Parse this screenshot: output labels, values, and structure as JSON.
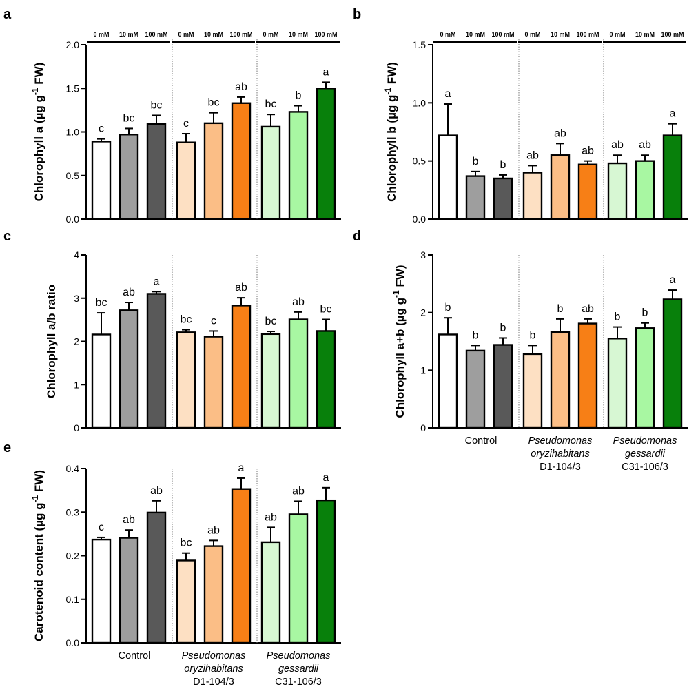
{
  "colors": {
    "control": [
      "#ffffff",
      "#9e9e9e",
      "#595959"
    ],
    "oryzihabitans": [
      "#fde0c3",
      "#fbbe86",
      "#f77f16"
    ],
    "gessardii": [
      "#d7f7d3",
      "#a8f7a2",
      "#08800b"
    ]
  },
  "concentrations": [
    "0 mM",
    "10 mM",
    "100 mM"
  ],
  "groups": [
    {
      "name": "Control",
      "italic": false,
      "lines": [
        "Control"
      ]
    },
    {
      "name": "Pseudomonas oryzihabitans D1-104/3",
      "italic": true,
      "lines": [
        "Pseudomonas",
        "oryzihabitans",
        "D1-104/3"
      ]
    },
    {
      "name": "Pseudomonas gessardii C31-106/3",
      "italic": true,
      "lines": [
        "Pseudomonas",
        "gessardii",
        "C31-106/3"
      ]
    }
  ],
  "chart_data": [
    {
      "panel": "a",
      "type": "bar",
      "ylabel_main": "Chlorophyll a (µg g",
      "ylabel_sup": "-1",
      "ylabel_end": " FW)",
      "ylim": [
        0,
        2.0
      ],
      "ticks": [
        "0.0",
        "0.5",
        "1.0",
        "1.5",
        "2.0"
      ],
      "tick_values": [
        0,
        0.5,
        1.0,
        1.5,
        2.0
      ],
      "values": [
        0.89,
        0.97,
        1.09,
        0.88,
        1.1,
        1.33,
        1.06,
        1.23,
        1.5
      ],
      "errors": [
        0.03,
        0.07,
        0.1,
        0.1,
        0.12,
        0.07,
        0.14,
        0.07,
        0.07
      ],
      "letters": [
        "c",
        "bc",
        "bc",
        "c",
        "bc",
        "ab",
        "bc",
        "b",
        "a"
      ],
      "show_concentrations": true,
      "show_groups": false
    },
    {
      "panel": "b",
      "type": "bar",
      "ylabel_main": "Chlorophyll b (µg g",
      "ylabel_sup": "-1",
      "ylabel_end": " FW)",
      "ylim": [
        0,
        1.5
      ],
      "ticks": [
        "0.0",
        "0.5",
        "1.0",
        "1.5"
      ],
      "tick_values": [
        0,
        0.5,
        1.0,
        1.5
      ],
      "values": [
        0.72,
        0.37,
        0.35,
        0.4,
        0.55,
        0.47,
        0.48,
        0.5,
        0.72
      ],
      "errors": [
        0.27,
        0.04,
        0.03,
        0.06,
        0.1,
        0.03,
        0.07,
        0.05,
        0.1
      ],
      "letters": [
        "a",
        "b",
        "b",
        "ab",
        "ab",
        "ab",
        "ab",
        "ab",
        "a"
      ],
      "show_concentrations": true,
      "show_groups": false
    },
    {
      "panel": "c",
      "type": "bar",
      "ylabel_main": "Chlorophyll a/b ratio",
      "ylabel_sup": "",
      "ylabel_end": "",
      "ylim": [
        0,
        4
      ],
      "ticks": [
        "0",
        "1",
        "2",
        "3",
        "4"
      ],
      "tick_values": [
        0,
        1,
        2,
        3,
        4
      ],
      "values": [
        2.16,
        2.72,
        3.1,
        2.21,
        2.11,
        2.83,
        2.17,
        2.51,
        2.24
      ],
      "errors": [
        0.5,
        0.18,
        0.05,
        0.06,
        0.13,
        0.18,
        0.06,
        0.17,
        0.27
      ],
      "letters": [
        "bc",
        "ab",
        "a",
        "bc",
        "c",
        "ab",
        "bc",
        "ab",
        "bc"
      ],
      "show_concentrations": false,
      "show_groups": false
    },
    {
      "panel": "d",
      "type": "bar",
      "ylabel_main": "Chlorophyll a+b (µg g",
      "ylabel_sup": "-1",
      "ylabel_end": " FW)",
      "ylim": [
        0,
        3
      ],
      "ticks": [
        "0",
        "1",
        "2",
        "3"
      ],
      "tick_values": [
        0,
        1,
        2,
        3
      ],
      "values": [
        1.62,
        1.34,
        1.44,
        1.28,
        1.66,
        1.81,
        1.55,
        1.73,
        2.23
      ],
      "errors": [
        0.29,
        0.09,
        0.12,
        0.15,
        0.23,
        0.08,
        0.2,
        0.09,
        0.16
      ],
      "letters": [
        "b",
        "b",
        "b",
        "b",
        "b",
        "ab",
        "b",
        "b",
        "a"
      ],
      "show_concentrations": false,
      "show_groups": true
    },
    {
      "panel": "e",
      "type": "bar",
      "ylabel_main": "Carotenoid content (µg g",
      "ylabel_sup": "-1",
      "ylabel_end": " FW)",
      "ylim": [
        0,
        0.4
      ],
      "ticks": [
        "0.0",
        "0.1",
        "0.2",
        "0.3",
        "0.4"
      ],
      "tick_values": [
        0,
        0.1,
        0.2,
        0.3,
        0.4
      ],
      "values": [
        0.237,
        0.241,
        0.299,
        0.189,
        0.222,
        0.353,
        0.231,
        0.295,
        0.327
      ],
      "errors": [
        0.005,
        0.018,
        0.027,
        0.017,
        0.013,
        0.025,
        0.034,
        0.03,
        0.029
      ],
      "letters": [
        "c",
        "ab",
        "ab",
        "bc",
        "ab",
        "a",
        "ab",
        "ab",
        "a"
      ],
      "show_concentrations": false,
      "show_groups": true
    }
  ]
}
